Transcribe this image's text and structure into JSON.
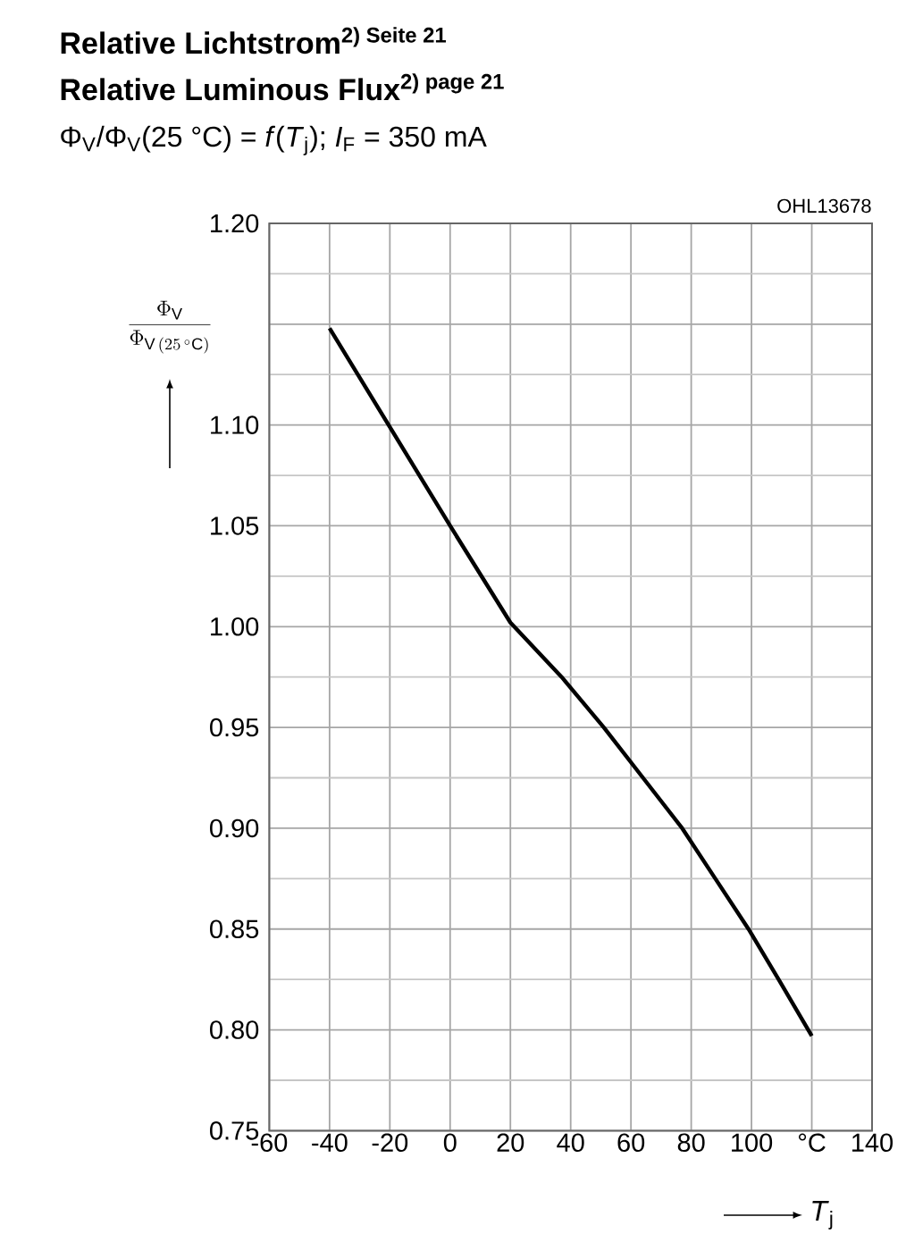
{
  "chart_data": {
    "type": "line",
    "title": "Relative Lichtstrom$^{2) Seite 21}$",
    "subtitle": "Relative Luminous Flux$^{2) page 21}$",
    "annotations": [
      "Φ$_{V}$/Φ$_{V}$(25 °C) = *f*(*T*$_{j}$); *I*$_{F}$ = 350 mA",
      "OHL13678"
    ],
    "xlabel": "*T*$_{j}$",
    "ylabel": "\\frac{\\Phi_{\\mathrm{V}}}{\\Phi_{\\mathrm{V}\\,(25\\,^{\\circ}\\mathrm{C})}}",
    "x": [
      -40,
      -20,
      0,
      20,
      37,
      51,
      64,
      77,
      88,
      99,
      109,
      120
    ],
    "series": [
      {
        "color": "#000000",
        "values": [
          1.148,
          1.099,
          1.05,
          1.002,
          0.975,
          0.95,
          0.925,
          0.9,
          0.875,
          0.85,
          0.825,
          0.797
        ]
      }
    ],
    "xlim": [
      -60,
      140
    ],
    "xticks": [
      -60,
      -40,
      -20,
      0,
      20,
      40,
      60,
      80,
      100,
      {
        "value": 120,
        "label": "°C"
      },
      140
    ],
    "ylim": [
      0.75,
      1.2
    ],
    "yticks": [
      0.75,
      {
        "value": 0.8,
        "label": "0.80"
      },
      0.85,
      {
        "value": 0.9,
        "label": "0.90"
      },
      0.95,
      {
        "value": 1.0,
        "label": "1.00"
      },
      1.05,
      {
        "value": 1.1,
        "label": "1.10"
      },
      {
        "value": 1.15,
        "label": null
      },
      {
        "value": 1.2,
        "label": "1.20"
      }
    ],
    "grid": true,
    "marker": "none",
    "line_style": "solid"
  }
}
